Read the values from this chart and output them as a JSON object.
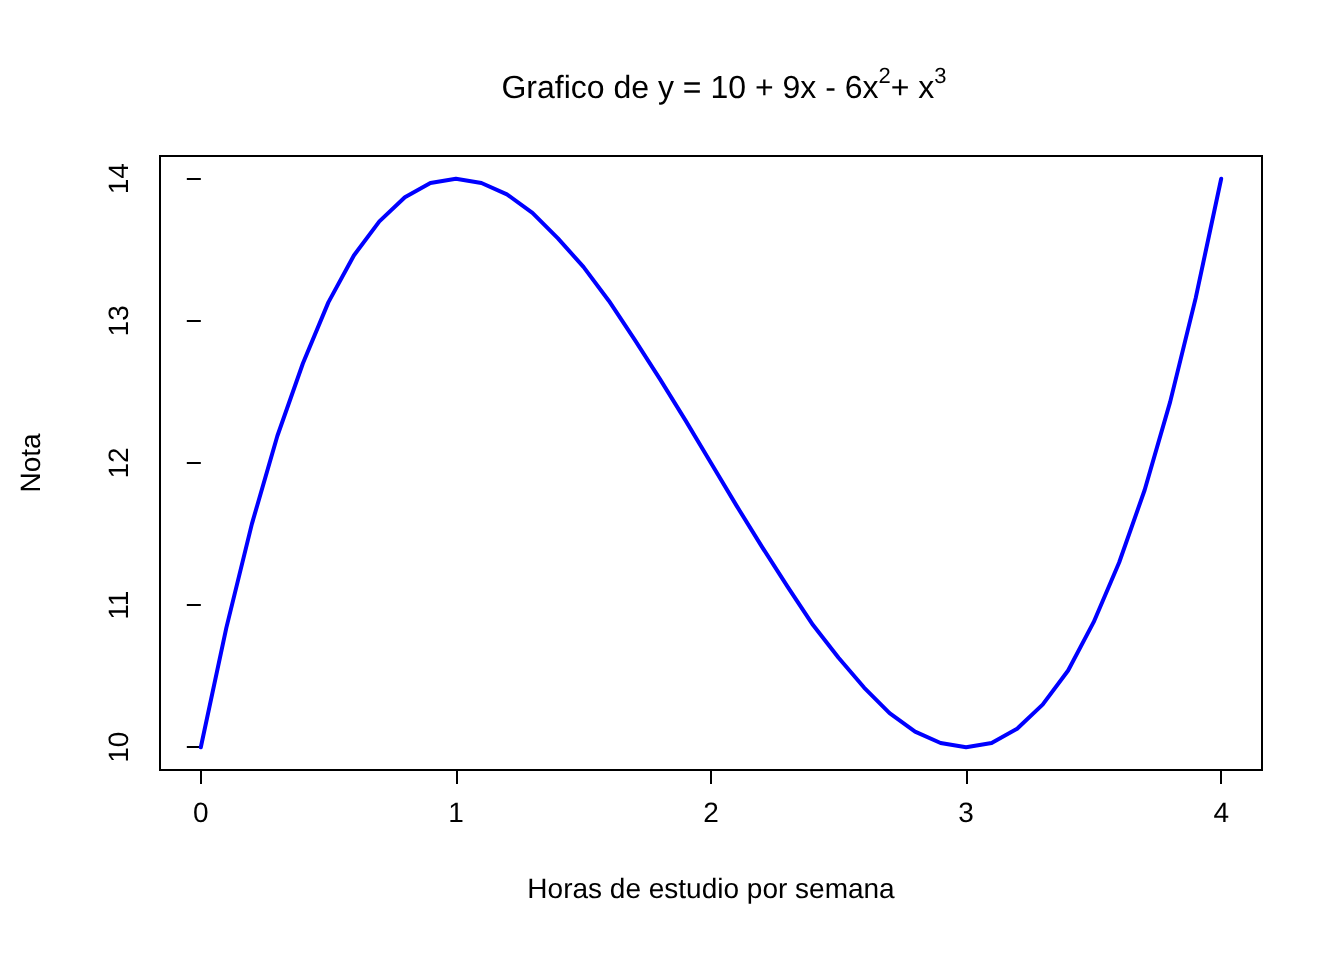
{
  "chart_data": {
    "type": "line",
    "title": "Grafico de y = 10 + 9x - 6x$^{2}$+ x$^{3}$",
    "xlabel": "Horas de estudio por semana",
    "ylabel": "Nota",
    "x": [
      0,
      0.1,
      0.2,
      0.3,
      0.4,
      0.5,
      0.6,
      0.7,
      0.8,
      0.9,
      1,
      1.1,
      1.2,
      1.3,
      1.4,
      1.5,
      1.6,
      1.7,
      1.8,
      1.9,
      2,
      2.1,
      2.2,
      2.3,
      2.4,
      2.5,
      2.6,
      2.7,
      2.8,
      2.9,
      3,
      3.1,
      3.2,
      3.3,
      3.4,
      3.5,
      3.6,
      3.7,
      3.8,
      3.9,
      4
    ],
    "series": [
      {
        "color": "#0000ff",
        "values": [
          10,
          10.84,
          11.57,
          12.19,
          12.7,
          13.13,
          13.46,
          13.7,
          13.87,
          13.97,
          14,
          13.97,
          13.89,
          13.76,
          13.58,
          13.38,
          13.14,
          12.87,
          12.59,
          12.3,
          12,
          11.7,
          11.41,
          11.13,
          10.86,
          10.63,
          10.42,
          10.24,
          10.11,
          10.03,
          10,
          10.03,
          10.13,
          10.3,
          10.54,
          10.88,
          11.3,
          11.81,
          12.43,
          13.16,
          14
        ]
      }
    ],
    "xlim": [
      -0.16,
      4.16
    ],
    "ylim": [
      9.84,
      14.16
    ],
    "xticks": [
      0,
      1,
      2,
      3,
      4
    ],
    "yticks": [
      10,
      11,
      12,
      13,
      14
    ],
    "grid": false,
    "marker": "none",
    "line_style": "solid"
  }
}
